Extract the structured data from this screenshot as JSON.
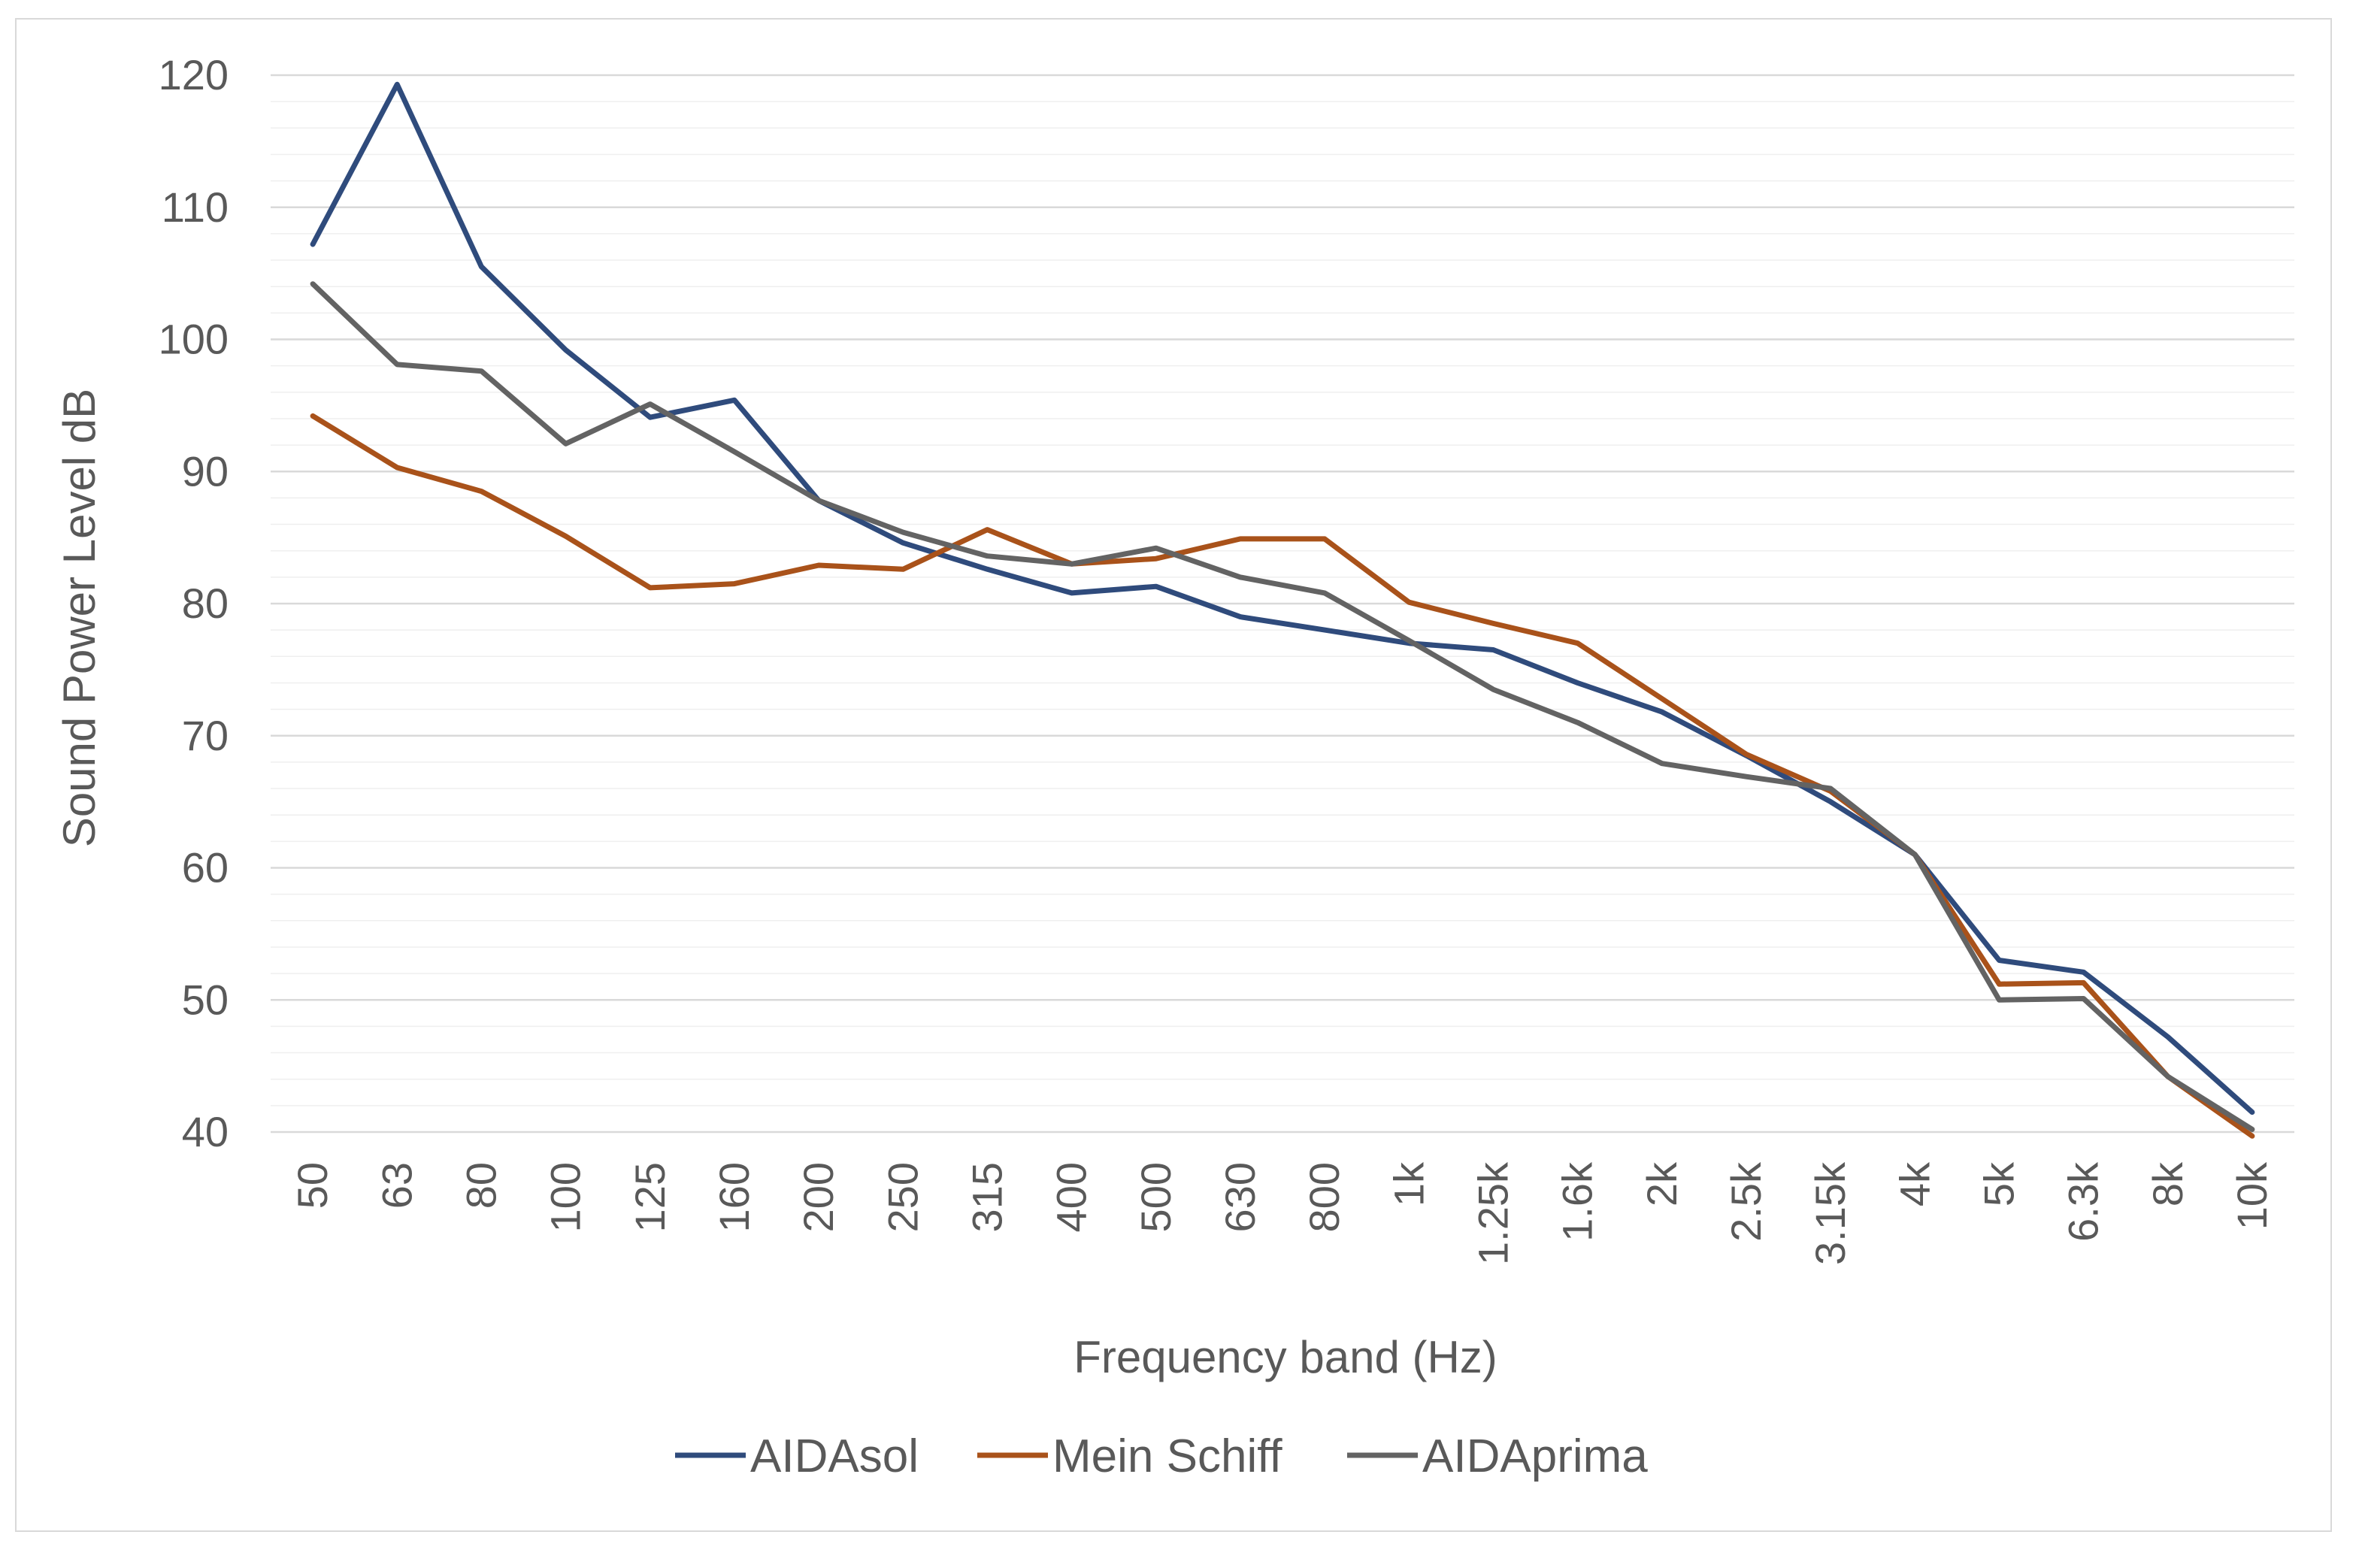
{
  "chart_data": {
    "type": "line",
    "title": "",
    "xlabel": "Frequency band (Hz)",
    "ylabel": "Sound Power Level dB",
    "ylim": [
      40,
      120
    ],
    "yticks": [
      40,
      50,
      60,
      70,
      80,
      90,
      100,
      110,
      120
    ],
    "minor_grid_step": 2,
    "grid": true,
    "legend_position": "bottom",
    "categories": [
      "50",
      "63",
      "80",
      "100",
      "125",
      "160",
      "200",
      "250",
      "315",
      "400",
      "500",
      "630",
      "800",
      "1k",
      "1.25k",
      "1.6k",
      "2k",
      "2.5k",
      "3.15k",
      "4k",
      "5k",
      "6.3k",
      "8k",
      "10k"
    ],
    "series": [
      {
        "name": "AIDAsol",
        "color": "#2f4b7c",
        "values": [
          107.2,
          119.3,
          105.5,
          99.2,
          94.1,
          95.4,
          87.8,
          84.6,
          82.6,
          80.8,
          81.3,
          79.0,
          78.0,
          77.0,
          76.5,
          74.0,
          71.8,
          68.5,
          65.0,
          61.0,
          53.0,
          52.1,
          47.2,
          41.5
        ]
      },
      {
        "name": "Mein Schiff",
        "color": "#a9521a",
        "values": [
          94.2,
          90.3,
          88.5,
          85.1,
          81.2,
          81.5,
          82.9,
          82.6,
          85.6,
          83.0,
          83.4,
          84.9,
          84.9,
          80.1,
          78.5,
          77.0,
          72.8,
          68.6,
          65.8,
          61.0,
          51.2,
          51.3,
          44.2,
          39.7
        ]
      },
      {
        "name": "AIDAprima",
        "color": "#636363",
        "values": [
          104.2,
          98.1,
          97.6,
          92.1,
          95.1,
          91.5,
          87.8,
          85.4,
          83.6,
          83.0,
          84.2,
          82.0,
          80.8,
          77.2,
          73.5,
          71.0,
          67.9,
          66.9,
          66.0,
          61.0,
          50.0,
          50.1,
          44.2,
          40.2
        ]
      }
    ]
  }
}
